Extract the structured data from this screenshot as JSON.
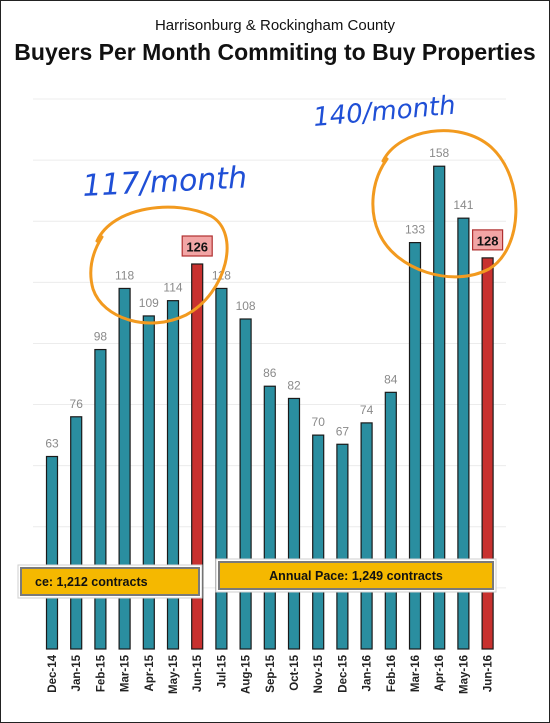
{
  "chart_data": {
    "type": "bar",
    "subtitle": "Harrisonburg & Rockingham County",
    "title": "Buyers Per Month Commiting to Buy Properties",
    "categories": [
      "Dec-14",
      "Jan-15",
      "Feb-15",
      "Mar-15",
      "Apr-15",
      "May-15",
      "Jun-15",
      "Jul-15",
      "Aug-15",
      "Sep-15",
      "Oct-15",
      "Nov-15",
      "Dec-15",
      "Jan-16",
      "Feb-16",
      "Mar-16",
      "Apr-16",
      "May-16",
      "Jun-16"
    ],
    "values": [
      63,
      76,
      98,
      118,
      109,
      114,
      126,
      118,
      108,
      86,
      82,
      70,
      67,
      74,
      84,
      133,
      158,
      141,
      128
    ],
    "highlighted": [
      "Jun-15",
      "Jun-16"
    ],
    "ylim": [
      0,
      180
    ],
    "grid": true,
    "colors": {
      "bar": "#2a8ea0",
      "highlight": "#c8312f",
      "label": "#8a8a8a",
      "callout_fill": "#f2a5a5",
      "pace_fill": "#f5b800",
      "annotation": "#1f4fd6",
      "circle": "#f29a1f"
    },
    "pace_boxes": [
      {
        "label": "ce: 1,212 contracts"
      },
      {
        "label": "Annual Pace: 1,249 contracts"
      }
    ],
    "annotations": [
      {
        "text": "117/month"
      },
      {
        "text": "140/month"
      }
    ]
  }
}
